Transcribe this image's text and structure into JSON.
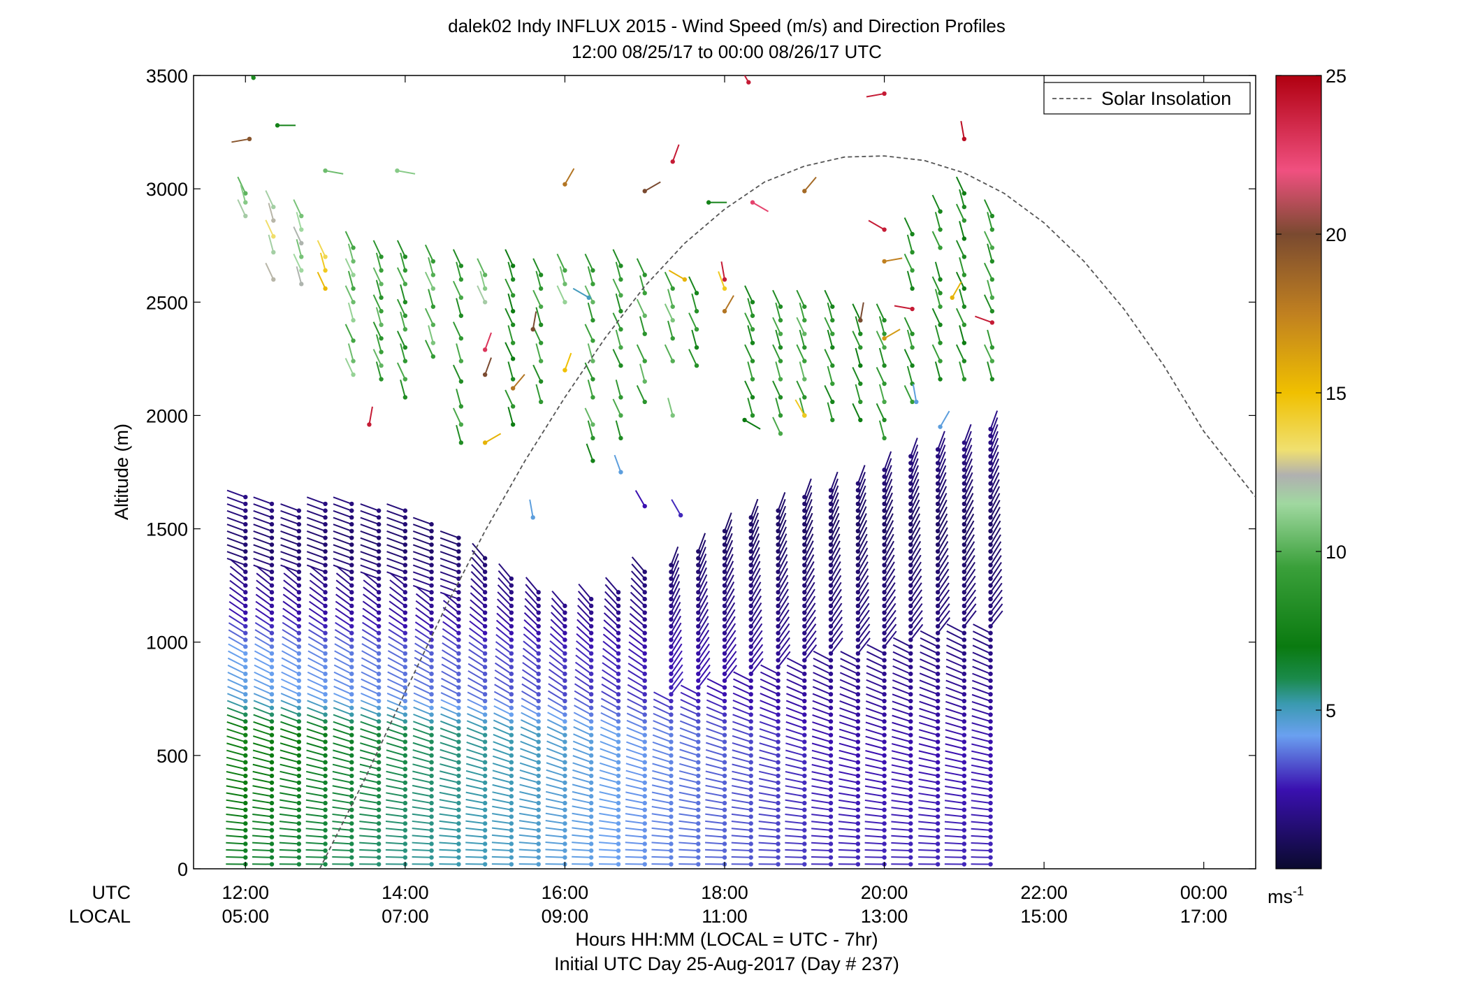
{
  "chart_data": {
    "type": "scatter",
    "title": "dalek02 Indy INFLUX 2015 - Wind Speed (m/s) and Direction Profiles",
    "subtitle": "12:00 08/25/17 to 00:00 08/26/17  UTC",
    "ylabel": "Altitude (m)",
    "xlabel": "Hours HH:MM  (LOCAL = UTC - 7hr)",
    "xlabel2": "Initial UTC Day 25-Aug-2017 (Day # 237)",
    "row_label_utc": "UTC",
    "row_label_local": "LOCAL",
    "xlim_hours": [
      11.35,
      24.65
    ],
    "ylim": [
      0,
      3500
    ],
    "x_ticks_hours": [
      12,
      14,
      16,
      18,
      20,
      22,
      24
    ],
    "x_ticklabels_utc": [
      "12:00",
      "14:00",
      "16:00",
      "18:00",
      "20:00",
      "22:00",
      "00:00"
    ],
    "x_ticklabels_local": [
      "05:00",
      "07:00",
      "09:00",
      "11:00",
      "13:00",
      "15:00",
      "17:00"
    ],
    "y_ticks": [
      0,
      500,
      1000,
      1500,
      2000,
      2500,
      3000,
      3500
    ],
    "y_ticklabels": [
      "0",
      "500",
      "1000",
      "1500",
      "2000",
      "2500",
      "3000",
      "3500"
    ],
    "legend": {
      "label": "Solar Insolation",
      "placement": "top-right"
    },
    "colorbar": {
      "min": 0,
      "max": 25,
      "ticks": [
        5,
        10,
        15,
        20,
        25
      ],
      "ticklabels": [
        "5",
        "10",
        "15",
        "20",
        "25"
      ],
      "unit_label": "ms",
      "unit_exponent": "-1",
      "stops": [
        {
          "v": 0,
          "c": "#0a0a2e"
        },
        {
          "v": 2.5,
          "c": "#3a10b0"
        },
        {
          "v": 4.2,
          "c": "#6aa0f0"
        },
        {
          "v": 5.2,
          "c": "#3a9ab0"
        },
        {
          "v": 6.0,
          "c": "#1a8a4a"
        },
        {
          "v": 7.0,
          "c": "#0a7a10"
        },
        {
          "v": 9.5,
          "c": "#3aa03a"
        },
        {
          "v": 11.5,
          "c": "#a0d8a0"
        },
        {
          "v": 12.4,
          "c": "#b0b0b0"
        },
        {
          "v": 13.2,
          "c": "#f0e070"
        },
        {
          "v": 15.0,
          "c": "#f0c000"
        },
        {
          "v": 17.5,
          "c": "#c08020"
        },
        {
          "v": 20.0,
          "c": "#7a4a30"
        },
        {
          "v": 22.0,
          "c": "#f05080"
        },
        {
          "v": 25.0,
          "c": "#b00010"
        }
      ]
    },
    "solar_insolation": {
      "style": "dashed",
      "color": "#555555",
      "hours": [
        12.93,
        13.5,
        14.0,
        14.5,
        15.0,
        15.5,
        16.0,
        16.5,
        17.0,
        17.5,
        18.0,
        18.5,
        19.0,
        19.5,
        20.0,
        20.5,
        21.0,
        21.5,
        22.0,
        22.5,
        23.0,
        23.5,
        24.0,
        24.65
      ],
      "altitude_equiv": [
        0,
        400,
        780,
        1150,
        1490,
        1800,
        2080,
        2340,
        2570,
        2760,
        2910,
        3030,
        3100,
        3140,
        3145,
        3125,
        3070,
        2980,
        2850,
        2680,
        2470,
        2220,
        1930,
        1640
      ]
    },
    "barbs": {
      "marker_description": "each barb: dot at (time, altitude); tail line points toward wind origin; color = wind speed (m/s)",
      "boundary_layer": {
        "times": [
          12.0,
          12.33,
          12.67,
          13.0,
          13.33,
          13.67,
          14.0,
          14.33,
          14.67,
          15.0,
          15.33,
          15.67,
          16.0,
          16.33,
          16.67,
          17.0,
          17.33,
          17.67,
          18.0,
          18.33,
          18.67,
          19.0,
          19.33,
          19.67,
          20.0,
          20.33,
          20.67,
          21.0,
          21.33
        ],
        "top_altitude": [
          1650,
          1620,
          1600,
          1620,
          1610,
          1590,
          1580,
          1520,
          1460,
          1380,
          1280,
          1220,
          1180,
          1190,
          1240,
          1320,
          1360,
          1420,
          1500,
          1560,
          1600,
          1640,
          1680,
          1720,
          1760,
          1820,
          1870,
          1900,
          1940
        ],
        "altitude_step": 30,
        "speed_profile_early": [
          {
            "alt": 0,
            "speed": 6.5
          },
          {
            "alt": 300,
            "speed": 7.0
          },
          {
            "alt": 600,
            "speed": 7.5
          },
          {
            "alt": 750,
            "speed": 4.5
          },
          {
            "alt": 950,
            "speed": 4.2
          },
          {
            "alt": 1100,
            "speed": 2.5
          },
          {
            "alt": 1400,
            "speed": 1.2
          },
          {
            "alt": 1700,
            "speed": 1.8
          }
        ],
        "speed_profile_late": [
          {
            "alt": 0,
            "speed": 2.8
          },
          {
            "alt": 500,
            "speed": 2.5
          },
          {
            "alt": 1000,
            "speed": 1.6
          },
          {
            "alt": 1500,
            "speed": 1.0
          },
          {
            "alt": 2000,
            "speed": 1.8
          }
        ],
        "direction_deg_low": 270,
        "direction_deg_high": 320
      },
      "upper_scattered": [
        {
          "t": 12.1,
          "alt": 3490,
          "speed": 8.0,
          "dir": 315
        },
        {
          "t": 12.05,
          "alt": 3220,
          "speed": 19.5,
          "dir": 260
        },
        {
          "t": 12.4,
          "alt": 3280,
          "speed": 7.5,
          "dir": 90
        },
        {
          "t": 13.0,
          "alt": 3080,
          "speed": 10.5,
          "dir": 100
        },
        {
          "t": 13.9,
          "alt": 3080,
          "speed": 11.0,
          "dir": 100
        },
        {
          "t": 16.0,
          "alt": 3020,
          "speed": 18.0,
          "dir": 30
        },
        {
          "t": 17.0,
          "alt": 2990,
          "speed": 20.0,
          "dir": 60
        },
        {
          "t": 17.35,
          "alt": 3120,
          "speed": 24.0,
          "dir": 20
        },
        {
          "t": 17.8,
          "alt": 2940,
          "speed": 7.5,
          "dir": 90
        },
        {
          "t": 18.3,
          "alt": 3470,
          "speed": 24.0,
          "dir": 330
        },
        {
          "t": 18.35,
          "alt": 2940,
          "speed": 22.5,
          "dir": 120
        },
        {
          "t": 19.0,
          "alt": 2990,
          "speed": 18.5,
          "dir": 40
        },
        {
          "t": 20.0,
          "alt": 3420,
          "speed": 24.0,
          "dir": 260
        },
        {
          "t": 21.0,
          "alt": 3220,
          "speed": 24.5,
          "dir": 350
        },
        {
          "t": 20.0,
          "alt": 2820,
          "speed": 24.0,
          "dir": 300
        },
        {
          "t": 18.0,
          "alt": 2600,
          "speed": 24.0,
          "dir": 350
        },
        {
          "t": 13.55,
          "alt": 1960,
          "speed": 24.0,
          "dir": 10
        },
        {
          "t": 20.0,
          "alt": 2680,
          "speed": 17.5,
          "dir": 80
        },
        {
          "t": 20.0,
          "alt": 2340,
          "speed": 16.5,
          "dir": 60
        },
        {
          "t": 20.35,
          "alt": 2470,
          "speed": 24.0,
          "dir": 280
        },
        {
          "t": 21.35,
          "alt": 2410,
          "speed": 24.0,
          "dir": 290
        },
        {
          "t": 20.85,
          "alt": 2520,
          "speed": 15.5,
          "dir": 30
        },
        {
          "t": 19.7,
          "alt": 2420,
          "speed": 20.0,
          "dir": 10
        },
        {
          "t": 15.0,
          "alt": 2180,
          "speed": 20.0,
          "dir": 20
        },
        {
          "t": 15.0,
          "alt": 2290,
          "speed": 23.0,
          "dir": 20
        },
        {
          "t": 15.35,
          "alt": 2120,
          "speed": 18.0,
          "dir": 40
        },
        {
          "t": 15.6,
          "alt": 2380,
          "speed": 20.0,
          "dir": 10
        },
        {
          "t": 16.0,
          "alt": 2200,
          "speed": 15.0,
          "dir": 20
        },
        {
          "t": 15.0,
          "alt": 1880,
          "speed": 15.5,
          "dir": 60
        },
        {
          "t": 17.5,
          "alt": 2600,
          "speed": 15.5,
          "dir": 300
        },
        {
          "t": 18.0,
          "alt": 2560,
          "speed": 14.5,
          "dir": 340
        },
        {
          "t": 18.0,
          "alt": 2460,
          "speed": 18.0,
          "dir": 30
        },
        {
          "t": 19.0,
          "alt": 2000,
          "speed": 14.5,
          "dir": 330
        },
        {
          "t": 18.25,
          "alt": 1980,
          "speed": 7.0,
          "dir": 120
        },
        {
          "t": 17.0,
          "alt": 1600,
          "speed": 2.5,
          "dir": 330
        },
        {
          "t": 17.45,
          "alt": 1560,
          "speed": 2.8,
          "dir": 330
        },
        {
          "t": 16.35,
          "alt": 1800,
          "speed": 7.5,
          "dir": 340
        },
        {
          "t": 16.7,
          "alt": 1750,
          "speed": 4.5,
          "dir": 340
        },
        {
          "t": 15.6,
          "alt": 1550,
          "speed": 4.5,
          "dir": 350
        },
        {
          "t": 20.4,
          "alt": 2060,
          "speed": 4.5,
          "dir": 350
        },
        {
          "t": 20.7,
          "alt": 1950,
          "speed": 4.5,
          "dir": 30
        },
        {
          "t": 16.3,
          "alt": 2520,
          "speed": 5.0,
          "dir": 300
        }
      ],
      "upper_columns": [
        {
          "t": 12.0,
          "alts": [
            2980,
            2940,
            2880
          ],
          "speed": 11.0
        },
        {
          "t": 12.35,
          "alts": [
            2920,
            2860,
            2790,
            2720,
            2600
          ],
          "speed": 12.5
        },
        {
          "t": 12.7,
          "alts": [
            2880,
            2820,
            2760,
            2700,
            2640,
            2580
          ],
          "speed": 11.5
        },
        {
          "t": 13.0,
          "alts": [
            2700,
            2640,
            2560
          ],
          "speed": 14.5
        },
        {
          "t": 13.35,
          "alts": [
            2740,
            2680,
            2620,
            2560,
            2500,
            2420,
            2330,
            2240,
            2180
          ],
          "speed": 10.5
        },
        {
          "t": 13.7,
          "alts": [
            2700,
            2640,
            2580,
            2520,
            2460,
            2400,
            2340,
            2280,
            2220,
            2160
          ],
          "speed": 9.5
        },
        {
          "t": 14.0,
          "alts": [
            2700,
            2640,
            2580,
            2500,
            2440,
            2380,
            2300,
            2240,
            2160,
            2080
          ],
          "speed": 9.0
        },
        {
          "t": 14.35,
          "alts": [
            2680,
            2620,
            2560,
            2480,
            2400,
            2320,
            2260
          ],
          "speed": 10.0
        },
        {
          "t": 14.7,
          "alts": [
            2660,
            2600,
            2520,
            2440,
            2340,
            2240,
            2150,
            2040,
            1960,
            1880
          ],
          "speed": 9.0
        },
        {
          "t": 15.0,
          "alts": [
            2620,
            2560,
            2500
          ],
          "speed": 11.0
        },
        {
          "t": 15.35,
          "alts": [
            2660,
            2600,
            2530,
            2460,
            2400,
            2320,
            2250,
            2160,
            2040,
            1960
          ],
          "speed": 8.0
        },
        {
          "t": 15.7,
          "alts": [
            2620,
            2560,
            2480,
            2400,
            2320,
            2240,
            2150,
            2060
          ],
          "speed": 9.0
        },
        {
          "t": 16.0,
          "alts": [
            2640,
            2580,
            2500
          ],
          "speed": 10.5
        },
        {
          "t": 16.35,
          "alts": [
            2640,
            2580,
            2500,
            2420,
            2330,
            2240,
            2160,
            2080,
            1960,
            1900
          ],
          "speed": 9.5
        },
        {
          "t": 16.7,
          "alts": [
            2660,
            2600,
            2530,
            2460,
            2380,
            2300,
            2220,
            2080,
            2000,
            1900
          ],
          "speed": 9.0
        },
        {
          "t": 17.0,
          "alts": [
            2620,
            2540,
            2440,
            2360,
            2240,
            2150,
            2060
          ],
          "speed": 9.5
        },
        {
          "t": 17.35,
          "alts": [
            2560,
            2480,
            2420,
            2340,
            2240,
            2000
          ],
          "speed": 10.0
        },
        {
          "t": 17.65,
          "alts": [
            2540,
            2460,
            2380,
            2300,
            2220
          ],
          "speed": 8.5
        },
        {
          "t": 18.35,
          "alts": [
            2500,
            2440,
            2380,
            2320,
            2240,
            2160,
            2080,
            2000
          ],
          "speed": 8.5
        },
        {
          "t": 18.7,
          "alts": [
            2480,
            2420,
            2360,
            2300,
            2240,
            2160,
            2080,
            2000,
            1920
          ],
          "speed": 9.0
        },
        {
          "t": 19.0,
          "alts": [
            2480,
            2420,
            2360,
            2300,
            2240,
            2160,
            2080,
            2000
          ],
          "speed": 9.5
        },
        {
          "t": 19.35,
          "alts": [
            2480,
            2420,
            2360,
            2300,
            2220,
            2140,
            2060,
            1980
          ],
          "speed": 8.5
        },
        {
          "t": 19.7,
          "alts": [
            2420,
            2360,
            2300,
            2220,
            2140,
            2060,
            1980
          ],
          "speed": 8.0
        },
        {
          "t": 20.0,
          "alts": [
            2420,
            2360,
            2300,
            2220,
            2140,
            2060,
            1980,
            1900
          ],
          "speed": 9.0
        },
        {
          "t": 20.35,
          "alts": [
            2800,
            2720,
            2640,
            2560,
            2360,
            2300,
            2220,
            2140,
            2060
          ],
          "speed": 8.5
        },
        {
          "t": 20.7,
          "alts": [
            2900,
            2820,
            2740,
            2600,
            2540,
            2480,
            2400,
            2320,
            2240,
            2160
          ],
          "speed": 8.5
        },
        {
          "t": 21.0,
          "alts": [
            2980,
            2920,
            2860,
            2780,
            2700,
            2620,
            2560,
            2480,
            2400,
            2320,
            2240,
            2160
          ],
          "speed": 8.0
        },
        {
          "t": 21.35,
          "alts": [
            2880,
            2820,
            2740,
            2680,
            2600,
            2520,
            2460,
            2300,
            2240,
            2160
          ],
          "speed": 9.0
        }
      ]
    }
  }
}
